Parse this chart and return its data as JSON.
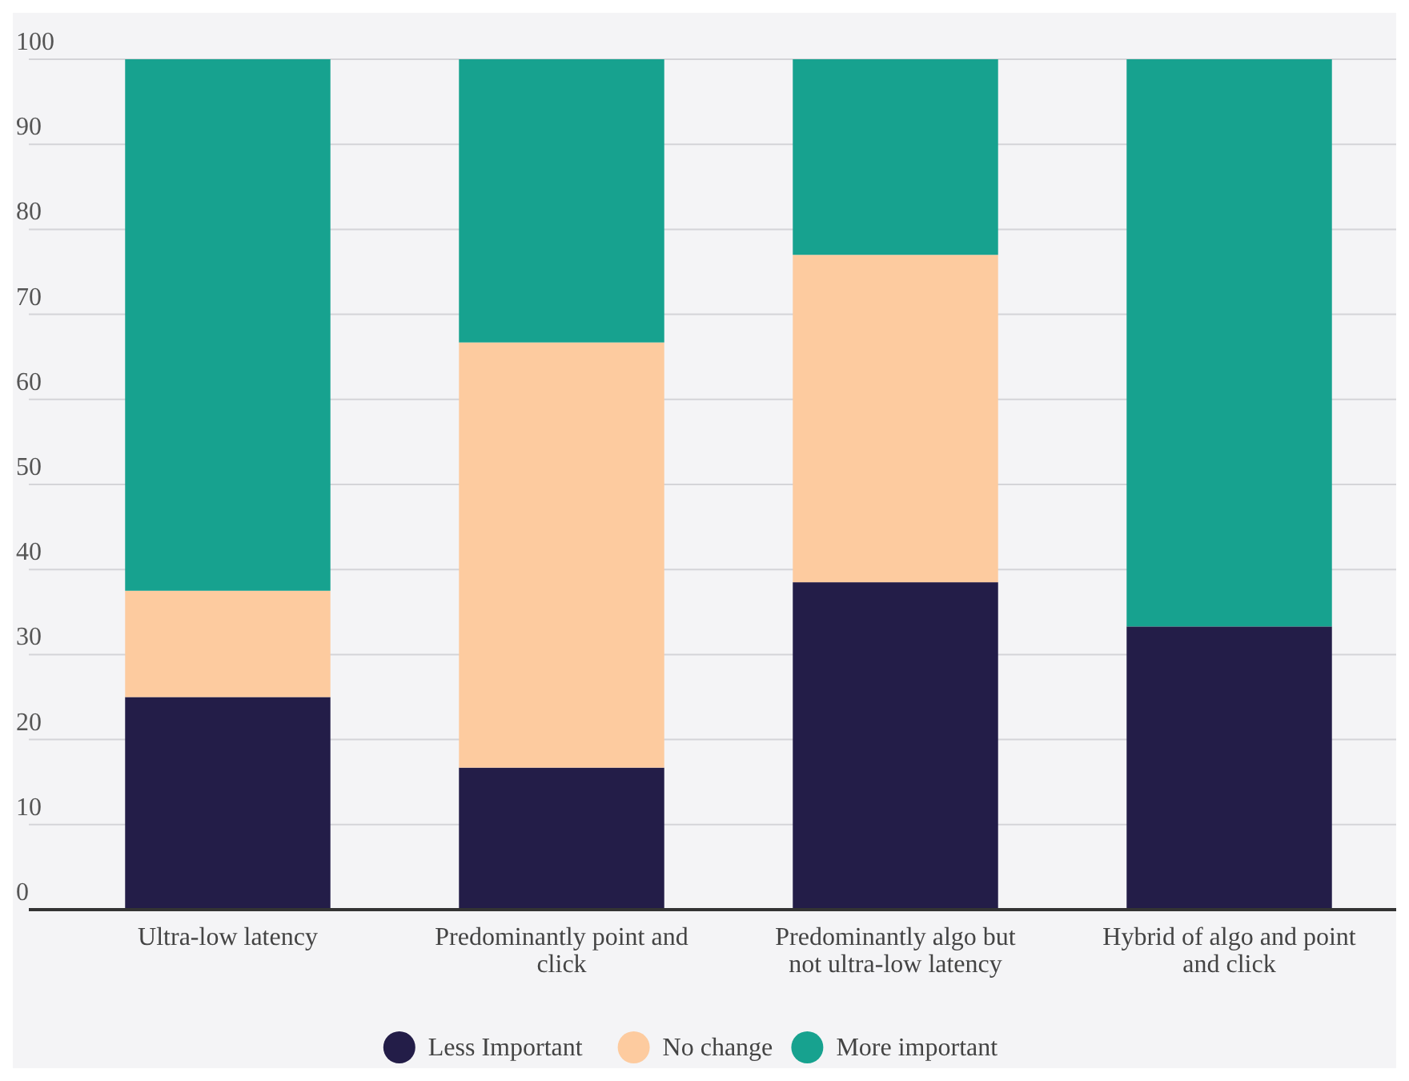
{
  "chart_data": {
    "type": "bar",
    "stacked": true,
    "categories": [
      "Ultra-low latency",
      "Predominantly point and click",
      "Predominantly algo but not ultra-low latency",
      "Hybrid of algo and point and click"
    ],
    "series": [
      {
        "name": "Less Important",
        "color": "#231d48",
        "values": [
          25,
          16.7,
          38.5,
          33.3
        ]
      },
      {
        "name": "No change",
        "color": "#fdcb9f",
        "values": [
          12.5,
          50,
          38.5,
          0
        ]
      },
      {
        "name": "More important",
        "color": "#17a28f",
        "values": [
          62.5,
          33.3,
          23,
          66.7
        ]
      }
    ],
    "ylim": [
      0,
      100
    ],
    "yticks": [
      0,
      10,
      20,
      30,
      40,
      50,
      60,
      70,
      80,
      90,
      100
    ],
    "grid": "y",
    "legend": "bottom"
  }
}
